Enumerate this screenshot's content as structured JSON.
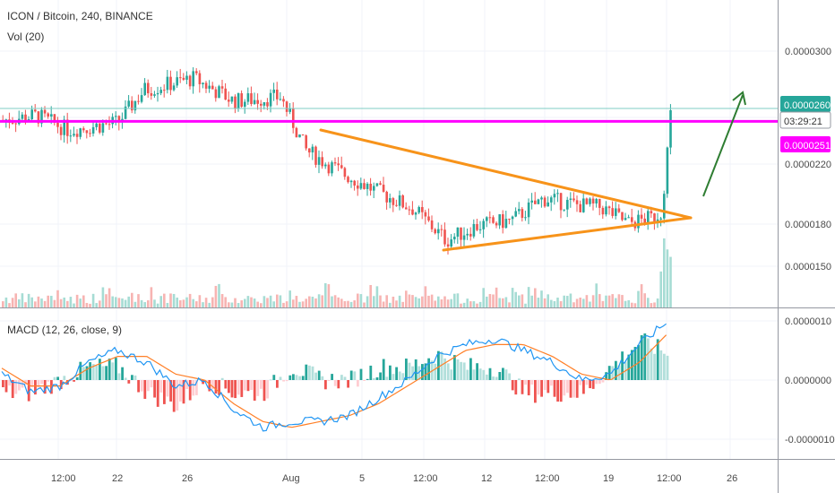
{
  "header": {
    "symbol_title": "ICON / Bitcoin, 240, BINANCE",
    "volume_label": "Vol (20)",
    "macd_label": "MACD (12, 26, close, 9)"
  },
  "price_axis": {
    "ticks": [
      "0.0000300",
      "0.0000220",
      "0.0000180",
      "0.0000150"
    ],
    "current_price": "0.0000260",
    "countdown": "03:29:21",
    "line_price": "0.0000251"
  },
  "macd_axis": {
    "ticks": [
      "0.0000010",
      "0.0000000",
      "-0.0000010"
    ]
  },
  "time_axis": {
    "ticks": [
      "12:00",
      "22",
      "26",
      "Aug",
      "5",
      "12:00",
      "12",
      "12:00",
      "19",
      "12:00",
      "26"
    ]
  },
  "colors": {
    "up": "#26a69a",
    "down": "#ef5350",
    "horizontal_line": "#ff00ff",
    "triangle": "#f7931a",
    "arrow": "#2e7d32",
    "macd_line": "#2196f3",
    "signal_line": "#ff7f27",
    "price_badge": "#26a69a",
    "countdown_badge": "#ffffff",
    "line_badge": "#ff00ff"
  },
  "chart_data": {
    "type": "candlestick",
    "series": [
      {
        "name": "price",
        "values": [
          2.44e-05,
          2.52e-05,
          2.62e-05,
          2.75e-05,
          2.83e-05,
          2.8e-05,
          2.71e-05,
          2.63e-05,
          2.45e-05,
          2.2e-05,
          2.05e-05,
          1.96e-05,
          1.9e-05,
          1.78e-05,
          1.68e-05,
          1.75e-05,
          1.8e-05,
          1.81e-05,
          1.85e-05,
          1.98e-05,
          2.03e-05,
          1.97e-05,
          1.96e-05,
          1.85e-05,
          1.8e-05,
          1.85e-05,
          2.1e-05,
          2.62e-05
        ]
      },
      {
        "name": "MACD",
        "values": [
          1e-07,
          -2e-07,
          -1e-07,
          3e-07,
          5e-07,
          3e-07,
          -1e-07,
          0.0,
          -5e-07,
          -8e-07,
          -7e-07,
          -7e-07,
          -6e-07,
          -3e-07,
          0.0,
          4e-07,
          6e-07,
          7e-07,
          5e-07,
          3e-07,
          0.0,
          1e-07,
          6e-07,
          1e-06
        ]
      },
      {
        "name": "signal",
        "values": [
          2e-07,
          -1e-07,
          -1e-07,
          2e-07,
          4e-07,
          4e-07,
          1e-07,
          0.0,
          -4e-07,
          -7e-07,
          -8e-07,
          -7e-07,
          -6e-07,
          -4e-07,
          -1e-07,
          2e-07,
          5e-07,
          6e-07,
          6e-07,
          4e-07,
          1e-07,
          0.0,
          3e-07,
          8e-07
        ]
      }
    ],
    "horizontal_line": 2.51e-05,
    "current_price": 2.6e-05,
    "price_ylim": [
      1.35e-05,
      3.3e-05
    ],
    "macd_ylim": [
      -1.3e-06,
      1.3e-06
    ],
    "grid": true
  }
}
